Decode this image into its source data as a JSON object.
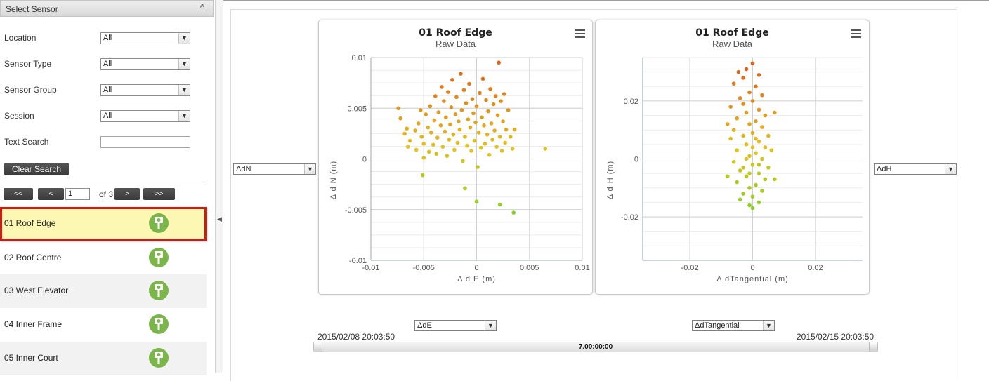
{
  "sidebar": {
    "title": "Select Sensor",
    "collapse_glyph": "^",
    "filters": [
      {
        "label": "Location",
        "value": "All"
      },
      {
        "label": "Sensor Type",
        "value": "All"
      },
      {
        "label": "Sensor Group",
        "value": "All"
      },
      {
        "label": "Session",
        "value": "All"
      }
    ],
    "text_search_label": "Text Search",
    "text_search_value": "",
    "clear_search_label": "Clear Search",
    "pager": {
      "first": "<<",
      "prev": "<",
      "page": "1",
      "of_text": "of 3",
      "next": ">",
      "last": ">>"
    },
    "sensors": [
      {
        "label": "01 Roof Edge",
        "selected": true
      },
      {
        "label": "02 Roof Centre",
        "selected": false
      },
      {
        "label": "03 West Elevator",
        "selected": false
      },
      {
        "label": "04 Inner Frame",
        "selected": false
      },
      {
        "label": "05 Inner Court",
        "selected": false
      }
    ],
    "sensor_icon": "survey-prism-icon",
    "colors": {
      "selected_bg": "#fdf7b4",
      "selected_border": "#d01a12",
      "icon": "#7ab648"
    }
  },
  "axis_selectors": {
    "left_y": "ΔdN",
    "right_y": "ΔdH",
    "left_x": "ΔdE",
    "right_x": "ΔdTangential"
  },
  "time_range": {
    "start": "2015/02/08 20:03:50",
    "end": "2015/02/15 20:03:50",
    "duration": "7.00:00:00"
  },
  "chart_data": [
    {
      "type": "scatter",
      "title": "01 Roof Edge",
      "subtitle": "Raw Data",
      "xlabel": "Δ d E  (m)",
      "ylabel": "Δ d N  (m)",
      "xlim": [
        -0.01,
        0.01
      ],
      "ylim": [
        -0.01,
        0.01
      ],
      "xticks": [
        -0.01,
        -0.005,
        0,
        0.005,
        0.01
      ],
      "yticks": [
        0.01,
        0.005,
        0,
        -0.005,
        -0.01
      ],
      "xtick_labels": [
        "-0.01",
        "-0.005",
        "0",
        "0.005",
        "0.01"
      ],
      "ytick_labels": [
        "0.01",
        "0.005",
        "0",
        "-0.005",
        "-0.01"
      ],
      "grid": true,
      "color_scale": [
        "#e0621a",
        "#e6c21a",
        "#6fd61f"
      ],
      "points": [
        [
          -0.0074,
          0.005
        ],
        [
          -0.0072,
          0.004
        ],
        [
          -0.0068,
          0.0025
        ],
        [
          -0.0066,
          0.003
        ],
        [
          -0.0065,
          0.0012
        ],
        [
          -0.0063,
          0.0018
        ],
        [
          -0.0058,
          0.0028
        ],
        [
          -0.0057,
          0.0009
        ],
        [
          -0.0055,
          0.0035
        ],
        [
          -0.0053,
          0.0048
        ],
        [
          -0.0052,
          0.0022
        ],
        [
          -0.005,
          0.0015
        ],
        [
          -0.005,
          0.0001
        ],
        [
          -0.0048,
          0.0044
        ],
        [
          -0.0046,
          0.0031
        ],
        [
          -0.0045,
          0.0007
        ],
        [
          -0.0044,
          0.0052
        ],
        [
          -0.0043,
          0.0026
        ],
        [
          -0.0041,
          0.0014
        ],
        [
          -0.004,
          0.0038
        ],
        [
          -0.0039,
          0.0062
        ],
        [
          -0.0038,
          0.0005
        ],
        [
          -0.0037,
          0.0021
        ],
        [
          -0.0036,
          0.0046
        ],
        [
          -0.0034,
          0.0033
        ],
        [
          -0.0033,
          0.0071
        ],
        [
          -0.0032,
          0.0012
        ],
        [
          -0.0031,
          0.0057
        ],
        [
          -0.003,
          0.0027
        ],
        [
          -0.0029,
          0.0041
        ],
        [
          -0.0028,
          0.0003
        ],
        [
          -0.0027,
          0.0066
        ],
        [
          -0.0026,
          0.0019
        ],
        [
          -0.0025,
          0.0034
        ],
        [
          -0.0024,
          0.0051
        ],
        [
          -0.0023,
          0.0078
        ],
        [
          -0.0022,
          0.0024
        ],
        [
          -0.0021,
          0.0009
        ],
        [
          -0.002,
          0.0044
        ],
        [
          -0.0019,
          0.0061
        ],
        [
          -0.0018,
          0.0016
        ],
        [
          -0.0017,
          0.0037
        ],
        [
          -0.0016,
          0.0029
        ],
        [
          -0.0015,
          0.0084
        ],
        [
          -0.0014,
          0.0048
        ],
        [
          -0.0013,
          -0.0002
        ],
        [
          -0.0012,
          0.0068
        ],
        [
          -0.0011,
          0.0022
        ],
        [
          -0.001,
          0.0055
        ],
        [
          -0.0009,
          0.0013
        ],
        [
          -0.0008,
          0.0039
        ],
        [
          -0.0007,
          0.0074
        ],
        [
          -0.0006,
          0.0031
        ],
        [
          -0.0005,
          0.0008
        ],
        [
          -0.0004,
          0.0059
        ],
        [
          -0.0003,
          0.0045
        ],
        [
          -0.0002,
          0.0018
        ],
        [
          -0.0001,
          0.0036
        ],
        [
          0.0,
          0.0052
        ],
        [
          0.0001,
          -0.0008
        ],
        [
          0.0002,
          0.0026
        ],
        [
          0.0003,
          0.0065
        ],
        [
          0.0004,
          0.0011
        ],
        [
          0.0005,
          0.0041
        ],
        [
          0.0006,
          0.0079
        ],
        [
          0.0007,
          0.0033
        ],
        [
          0.0008,
          0.0015
        ],
        [
          0.0009,
          0.0058
        ],
        [
          0.001,
          0.0024
        ],
        [
          0.0011,
          0.0047
        ],
        [
          0.0012,
          0.0004
        ],
        [
          0.0013,
          0.0069
        ],
        [
          0.0014,
          0.0035
        ],
        [
          0.0015,
          0.0019
        ],
        [
          0.0016,
          0.0054
        ],
        [
          0.0017,
          0.0028
        ],
        [
          0.0018,
          0.0062
        ],
        [
          0.0019,
          0.0012
        ],
        [
          0.002,
          0.0043
        ],
        [
          0.0021,
          0.0095
        ],
        [
          0.0022,
          0.0022
        ],
        [
          0.0023,
          0.0057
        ],
        [
          0.0024,
          0.0008
        ],
        [
          0.0025,
          0.0037
        ],
        [
          0.0026,
          0.0064
        ],
        [
          0.0027,
          0.0016
        ],
        [
          0.0028,
          0.0029
        ],
        [
          0.003,
          0.0048
        ],
        [
          0.0032,
          0.0022
        ],
        [
          0.0034,
          0.001
        ],
        [
          0.0036,
          0.0029
        ],
        [
          0.0065,
          0.001
        ],
        [
          0.0035,
          -0.0053
        ],
        [
          0.0022,
          -0.0045
        ],
        [
          0.0,
          -0.0042
        ],
        [
          -0.0011,
          -0.0029
        ],
        [
          -0.0051,
          -0.0016
        ]
      ]
    },
    {
      "type": "scatter",
      "title": "01 Roof Edge",
      "subtitle": "Raw Data",
      "xlabel": "Δ dTangential  (m)",
      "ylabel": "Δ d H  (m)",
      "xlim": [
        -0.035,
        0.035
      ],
      "ylim": [
        -0.035,
        0.035
      ],
      "xticks": [
        -0.02,
        0,
        0.02
      ],
      "yticks": [
        0.02,
        0,
        -0.02
      ],
      "xtick_labels": [
        "-0.02",
        "0",
        "0.02"
      ],
      "ytick_labels": [
        "0.02",
        "0",
        "-0.02"
      ],
      "grid": true,
      "color_scale": [
        "#e0621a",
        "#e6c21a",
        "#6fd61f"
      ],
      "points": [
        [
          -0.0045,
          0.03
        ],
        [
          -0.002,
          0.031
        ],
        [
          0.0,
          0.033
        ],
        [
          -0.003,
          0.028
        ],
        [
          0.002,
          0.029
        ],
        [
          -0.006,
          0.026
        ],
        [
          0.001,
          0.025
        ],
        [
          -0.001,
          0.023
        ],
        [
          0.003,
          0.022
        ],
        [
          -0.004,
          0.021
        ],
        [
          0.0,
          0.02
        ],
        [
          -0.007,
          0.018
        ],
        [
          0.002,
          0.017
        ],
        [
          -0.002,
          0.016
        ],
        [
          0.004,
          0.015
        ],
        [
          -0.005,
          0.014
        ],
        [
          0.001,
          0.013
        ],
        [
          -0.001,
          0.012
        ],
        [
          0.003,
          0.011
        ],
        [
          -0.006,
          0.01
        ],
        [
          0.0,
          0.009
        ],
        [
          -0.003,
          0.008
        ],
        [
          0.005,
          0.008
        ],
        [
          -0.007,
          0.007
        ],
        [
          0.002,
          0.006
        ],
        [
          -0.002,
          0.005
        ],
        [
          0.004,
          0.004
        ],
        [
          -0.005,
          0.003
        ],
        [
          0.001,
          0.002
        ],
        [
          -0.001,
          0.001
        ],
        [
          0.003,
          0.0
        ],
        [
          -0.006,
          -0.001
        ],
        [
          0.0,
          -0.002
        ],
        [
          -0.003,
          -0.003
        ],
        [
          0.005,
          -0.003
        ],
        [
          -0.004,
          -0.004
        ],
        [
          0.002,
          -0.005
        ],
        [
          -0.002,
          -0.006
        ],
        [
          0.004,
          -0.007
        ],
        [
          -0.005,
          -0.008
        ],
        [
          0.001,
          -0.009
        ],
        [
          -0.001,
          -0.01
        ],
        [
          0.003,
          -0.011
        ],
        [
          -0.003,
          -0.012
        ],
        [
          0.0,
          -0.013
        ],
        [
          -0.004,
          -0.014
        ],
        [
          0.002,
          -0.015
        ],
        [
          -0.001,
          -0.016
        ],
        [
          0.0,
          -0.017
        ],
        [
          0.007,
          -0.007
        ],
        [
          -0.008,
          -0.006
        ],
        [
          0.006,
          0.003
        ],
        [
          -0.008,
          0.012
        ],
        [
          0.007,
          0.016
        ],
        [
          -0.003,
          0.019
        ],
        [
          0.001,
          0.007
        ],
        [
          -0.002,
          0.0
        ],
        [
          0.002,
          -0.002
        ],
        [
          0.0,
          0.004
        ],
        [
          -0.001,
          -0.005
        ]
      ]
    }
  ]
}
